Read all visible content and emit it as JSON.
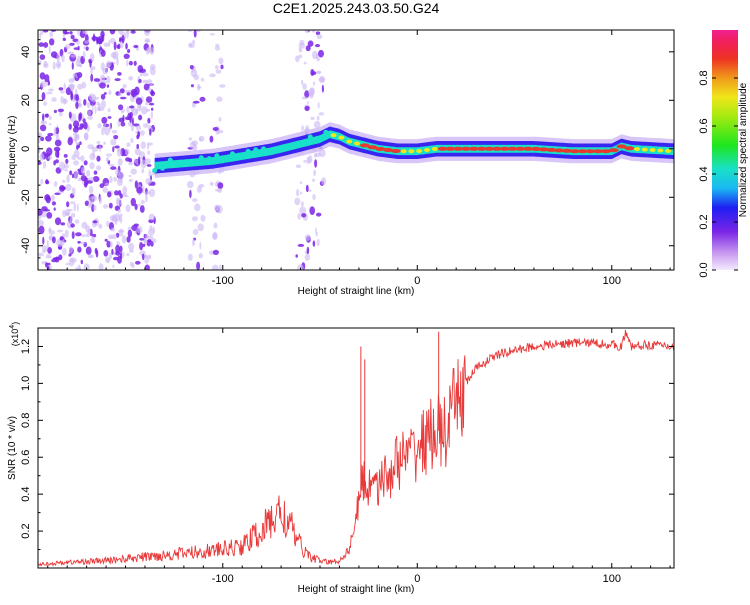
{
  "title": "C2E1.2025.243.03.50.G24",
  "colors": {
    "snr_line": "#e83a3a",
    "track_core": "#e63b2e",
    "track_mid": "#19e0c8",
    "track_edge": "#2f1cf0",
    "speckle": "#7a24e6",
    "speckle_light": "#cdb8f5"
  },
  "chart_data": [
    {
      "type": "heatmap",
      "title": "C2E1.2025.243.03.50.G24",
      "xlabel": "Height of straight line (km)",
      "ylabel": "Frequency (Hz)",
      "xlim": [
        -195,
        132
      ],
      "ylim": [
        -50,
        49
      ],
      "x_ticks": [
        -100,
        0,
        100
      ],
      "x_tick_labels": [
        "-100",
        "0",
        "100"
      ],
      "y_ticks": [
        -40,
        -20,
        0,
        20,
        40
      ],
      "y_tick_labels": [
        "-40",
        "-20",
        "0",
        "20",
        "40"
      ],
      "colorbar": {
        "label": "Normalized spectral amplitude",
        "range": [
          0,
          1
        ],
        "ticks": [
          0.0,
          0.2,
          0.4,
          0.6,
          0.8
        ],
        "tick_labels": [
          "0.0",
          "0.2",
          "0.4",
          "0.6",
          "0.8"
        ]
      },
      "signal_track": {
        "x": [
          -135,
          -120,
          -105,
          -90,
          -75,
          -60,
          -50,
          -45,
          -40,
          -35,
          -30,
          -25,
          -20,
          -10,
          0,
          10,
          20,
          40,
          60,
          80,
          100,
          105,
          110,
          132
        ],
        "frequency": [
          -7,
          -6,
          -5,
          -3,
          -1,
          2,
          4,
          6,
          5,
          3,
          2,
          1,
          0,
          -1,
          -1,
          0,
          0,
          0,
          0,
          -1,
          -1,
          1,
          0,
          -1
        ],
        "amplitude": [
          0.35,
          0.35,
          0.4,
          0.45,
          0.5,
          0.5,
          0.55,
          0.6,
          0.7,
          0.8,
          0.85,
          0.9,
          0.9,
          0.85,
          0.8,
          0.85,
          0.9,
          0.9,
          0.9,
          0.9,
          0.9,
          0.9,
          0.85,
          0.8
        ]
      },
      "noise_regions": [
        {
          "x_range": [
            -195,
            -135
          ],
          "amplitude": 0.2
        },
        {
          "x_range": [
            -117,
            -110
          ],
          "amplitude": 0.12
        },
        {
          "x_range": [
            -106,
            -100
          ],
          "amplitude": 0.1
        },
        {
          "x_range": [
            -62,
            -48
          ],
          "amplitude": 0.12
        }
      ]
    },
    {
      "type": "line",
      "xlabel": "Height of straight line (km)",
      "ylabel": "SNR (10 * v/v)",
      "y_multiplier_label": "(x10",
      "y_multiplier_exponent": "4",
      "y_multiplier_close": ")",
      "xlim": [
        -195,
        132
      ],
      "ylim": [
        0,
        1.3
      ],
      "x_ticks": [
        -100,
        0,
        100
      ],
      "x_tick_labels": [
        "-100",
        "0",
        "100"
      ],
      "y_ticks": [
        0.2,
        0.4,
        0.6,
        0.8,
        1.0,
        1.2
      ],
      "y_tick_labels": [
        "0.2",
        "0.4",
        "0.6",
        "0.8",
        "1.0",
        "1.2"
      ],
      "series": [
        {
          "name": "SNR",
          "x": [
            -195,
            -180,
            -160,
            -140,
            -120,
            -100,
            -90,
            -80,
            -75,
            -70,
            -65,
            -60,
            -55,
            -50,
            -45,
            -40,
            -35,
            -32,
            -30,
            -28,
            -26,
            -24,
            -22,
            -20,
            -15,
            -10,
            -5,
            0,
            5,
            10,
            15,
            20,
            25,
            30,
            40,
            50,
            60,
            70,
            80,
            90,
            100,
            105,
            107,
            110,
            120,
            132
          ],
          "y": [
            0.02,
            0.03,
            0.04,
            0.06,
            0.08,
            0.1,
            0.12,
            0.2,
            0.26,
            0.3,
            0.22,
            0.12,
            0.06,
            0.04,
            0.03,
            0.04,
            0.1,
            0.25,
            0.35,
            0.5,
            0.42,
            0.45,
            0.55,
            0.45,
            0.5,
            0.58,
            0.6,
            0.65,
            0.7,
            0.75,
            0.72,
            0.9,
            1.0,
            1.08,
            1.15,
            1.18,
            1.2,
            1.21,
            1.22,
            1.22,
            1.21,
            1.2,
            1.27,
            1.2,
            1.21,
            1.2
          ]
        }
      ],
      "spikes": [
        {
          "x": -29,
          "y": 1.2
        },
        {
          "x": -27,
          "y": 1.13
        },
        {
          "x": 11,
          "y": 1.28
        },
        {
          "x": 107,
          "y": 1.29
        }
      ]
    }
  ]
}
